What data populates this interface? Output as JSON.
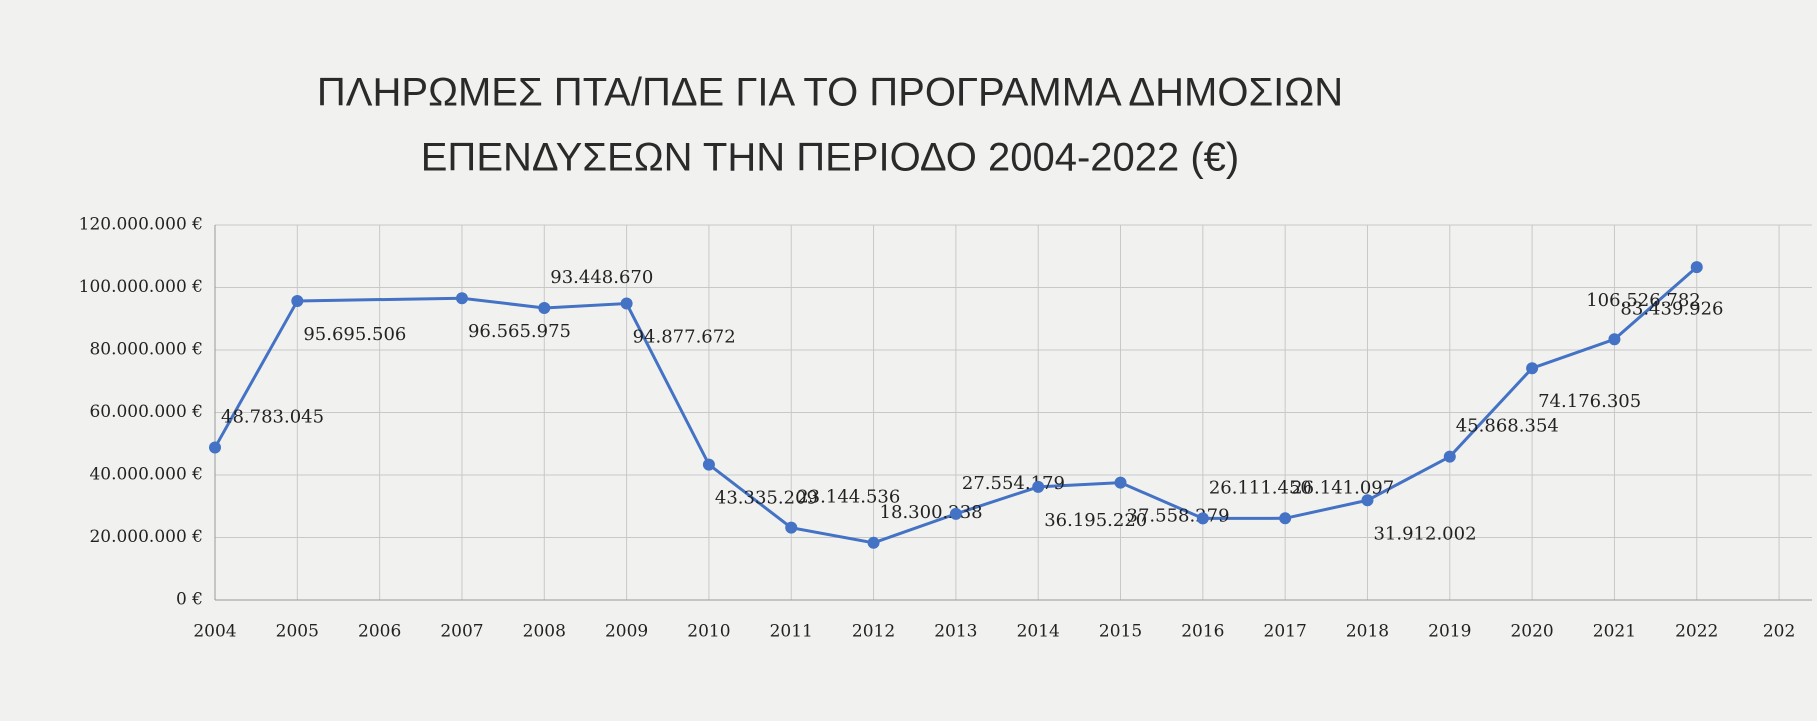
{
  "chart_data": {
    "type": "line",
    "title": [
      "ΠΛΗΡΩΜΕΣ ΠΤΑ/ΠΔΕ ΓΙΑ ΤΟ ΠΡΟΓΡΑΜΜΑ ΔΗΜΟΣΙΩΝ",
      "ΕΠΕΝΔΥΣΕΩΝ ΤΗΝ ΠΕΡΙΟΔΟ 2004-2022 (€)"
    ],
    "x": [
      2004,
      2005,
      2007,
      2008,
      2009,
      2010,
      2011,
      2012,
      2013,
      2014,
      2015,
      2016,
      2017,
      2018,
      2019,
      2020,
      2021,
      2022
    ],
    "series": [
      {
        "color": "#4472c4",
        "values": [
          48783045,
          95695506,
          96565975,
          93448670,
          94877672,
          43335209,
          23144536,
          18300238,
          27554179,
          36195220,
          37558279,
          26111450,
          26141097,
          31912002,
          45868354,
          74176305,
          83439926,
          106526782
        ],
        "value_labels": [
          "48.783.045",
          "95.695.506",
          "96.565.975",
          "93.448.670",
          "94.877.672",
          "43.335.209",
          "23.144.536",
          "18.300.238",
          "27.554.179",
          "36.195.220",
          "37.558.279",
          "26.111.450",
          "26.141.097",
          "31.912.002",
          "45.868.354",
          "74.176.305",
          "83.439.926",
          "106.526.782"
        ]
      }
    ],
    "xlim": [
      2004,
      2023.4
    ],
    "xticks": [
      2004,
      2005,
      2006,
      2007,
      2008,
      2009,
      2010,
      2011,
      2012,
      2013,
      2014,
      2015,
      2016,
      2017,
      2018,
      2019,
      2020,
      2021,
      2022,
      {
        "value": 2023,
        "label": "202"
      }
    ],
    "ylim": [
      0,
      120000000
    ],
    "yticks": [
      {
        "value": 0,
        "label": "0 €"
      },
      {
        "value": 20000000,
        "label": "20.000.000 €"
      },
      {
        "value": 40000000,
        "label": "40.000.000 €"
      },
      {
        "value": 60000000,
        "label": "60.000.000 €"
      },
      {
        "value": 80000000,
        "label": "80.000.000 €"
      },
      {
        "value": 100000000,
        "label": "100.000.000 €"
      },
      {
        "value": 120000000,
        "label": "120.000.000 €"
      }
    ],
    "grid": true
  }
}
